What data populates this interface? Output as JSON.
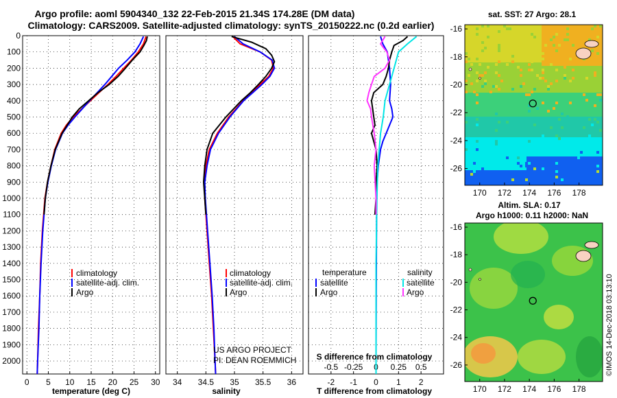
{
  "title": {
    "line1": "Argo profile: aoml 5904340_132 22-Feb-2015 21.34S 174.28E (DM data)",
    "line2": "Climatology: CARS2009. Satellite-adjusted climatology: synTS_20150222.nc (0.2d earlier)"
  },
  "depth_ticks": [
    "0",
    "100",
    "200",
    "300",
    "400",
    "500",
    "600",
    "700",
    "800",
    "900",
    "1000",
    "1100",
    "1200",
    "1300",
    "1400",
    "1500",
    "1600",
    "1700",
    "1800",
    "1900",
    "2000"
  ],
  "legend": {
    "climatology": "climatology",
    "satellite": "satellite-adj. clim.",
    "argo": "Argo",
    "diff_temp_title": "temperature",
    "diff_sal_title": "salinity",
    "diff_sat": "satellite",
    "diff_argo": "Argo"
  },
  "credit": {
    "line1": "US ARGO PROJECT",
    "line2": "PI: DEAN ROEMMICH"
  },
  "map1": {
    "title": "sat. SST: 27 Argo: 28.1"
  },
  "map2": {
    "title1": "Altim. SLA: 0.17",
    "title2": "Argo h1000: 0.11 h2000: NaN"
  },
  "map_xticks": [
    "170",
    "172",
    "174",
    "176",
    "178"
  ],
  "map_yticks": [
    "-16",
    "-18",
    "-20",
    "-22",
    "-24",
    "-26"
  ],
  "watermark": "©IMOS 14-Dec-2018 03:13:10",
  "colors": {
    "climatology": "#ff0000",
    "satellite": "#0000ff",
    "argo": "#000000",
    "sal_sat": "#00e5e5",
    "sal_argo": "#ff33ff"
  },
  "chart_data": [
    {
      "type": "line",
      "xlabel": "temperature (deg C)",
      "xlim": [
        -1,
        31
      ],
      "xticks": [
        "0",
        "5",
        "10",
        "15",
        "20",
        "25",
        "30"
      ],
      "ylim": [
        2080,
        0
      ],
      "series": [
        {
          "name": "climatology",
          "depth": [
            5,
            50,
            100,
            150,
            200,
            250,
            300,
            350,
            400,
            450,
            500,
            550,
            600,
            700,
            800,
            900,
            1000,
            1200,
            1400,
            1600,
            1800,
            2000,
            2080
          ],
          "values": [
            27.8,
            27.2,
            26.0,
            24.4,
            22.6,
            20.8,
            18.9,
            16.8,
            14.8,
            12.8,
            10.8,
            9.2,
            8.0,
            6.5,
            5.6,
            4.8,
            4.2,
            3.6,
            3.2,
            3.0,
            2.7,
            2.5,
            2.4
          ]
        },
        {
          "name": "satellite-adj. clim.",
          "depth": [
            5,
            50,
            100,
            150,
            200,
            250,
            300,
            350,
            400,
            450,
            500,
            550,
            600,
            700,
            800,
            900,
            1000,
            1200,
            1400,
            1600,
            1800,
            2000,
            2080
          ],
          "values": [
            27.2,
            26.4,
            25.2,
            23.4,
            21.4,
            19.8,
            18.2,
            16.4,
            14.6,
            12.9,
            11.2,
            9.6,
            8.3,
            6.7,
            5.7,
            4.9,
            4.3,
            3.7,
            3.3,
            3.0,
            2.8,
            2.5,
            2.4
          ]
        },
        {
          "name": "Argo",
          "depth": [
            5,
            30,
            60,
            100,
            150,
            200,
            250,
            300,
            350,
            400,
            450,
            500,
            550,
            600,
            700,
            800,
            900,
            1000,
            1100
          ],
          "values": [
            28.1,
            27.9,
            27.3,
            26.4,
            24.6,
            23.0,
            21.3,
            19.2,
            16.6,
            14.4,
            12.2,
            10.6,
            9.4,
            8.2,
            6.6,
            5.6,
            4.8,
            4.3,
            4.0
          ]
        }
      ]
    },
    {
      "type": "line",
      "xlabel": "salinity",
      "xlim": [
        33.8,
        36.2
      ],
      "xticks": [
        "34",
        "34.5",
        "35",
        "35.5",
        "36"
      ],
      "ylim": [
        2080,
        0
      ],
      "series": [
        {
          "name": "climatology",
          "depth": [
            5,
            50,
            100,
            150,
            200,
            250,
            300,
            350,
            400,
            500,
            600,
            700,
            800,
            900,
            1000,
            1200,
            1400,
            1600,
            1800,
            2000,
            2080
          ],
          "values": [
            34.97,
            35.1,
            35.45,
            35.65,
            35.68,
            35.6,
            35.45,
            35.3,
            35.15,
            34.9,
            34.7,
            34.56,
            34.5,
            34.47,
            34.48,
            34.52,
            34.56,
            34.6,
            34.63,
            34.66,
            34.67
          ]
        },
        {
          "name": "satellite-adj. clim.",
          "depth": [
            5,
            50,
            100,
            150,
            200,
            250,
            300,
            350,
            400,
            500,
            600,
            700,
            800,
            900,
            1000,
            1200,
            1400,
            1600,
            1800,
            2000,
            2080
          ],
          "values": [
            35.0,
            35.15,
            35.45,
            35.66,
            35.7,
            35.62,
            35.48,
            35.32,
            35.16,
            34.92,
            34.72,
            34.58,
            34.52,
            34.48,
            34.49,
            34.53,
            34.57,
            34.61,
            34.64,
            34.66,
            34.67
          ]
        },
        {
          "name": "Argo",
          "depth": [
            5,
            40,
            80,
            120,
            160,
            200,
            250,
            300,
            350,
            400,
            500,
            600,
            700,
            800,
            900,
            1000,
            1100
          ],
          "values": [
            34.95,
            35.3,
            35.55,
            35.65,
            35.7,
            35.65,
            35.55,
            35.42,
            35.28,
            35.12,
            34.85,
            34.62,
            34.52,
            34.48,
            34.46,
            34.48,
            34.5
          ]
        }
      ]
    },
    {
      "type": "line",
      "xlabel": "T difference from climatology",
      "xlabel2": "S difference from climatology",
      "xlim": [
        -3,
        3
      ],
      "xticks": [
        "-2",
        "-1",
        "0",
        "1",
        "2"
      ],
      "xticks2": [
        "-0.5",
        "-0.25",
        "0",
        "0.25",
        "0.5"
      ],
      "ylim": [
        2080,
        0
      ],
      "series": [
        {
          "name": "temperature satellite",
          "depth": [
            5,
            50,
            100,
            150,
            200,
            300,
            400,
            450,
            500,
            550,
            600,
            650,
            700,
            800,
            900,
            1000,
            1200,
            1600,
            2000,
            2080
          ],
          "values": [
            0.2,
            0.3,
            0.5,
            0.55,
            0.6,
            0.65,
            0.6,
            0.7,
            0.75,
            0.6,
            0.45,
            0.3,
            0.2,
            0.1,
            0.05,
            0.03,
            0.02,
            0.01,
            0.0,
            0.0
          ]
        },
        {
          "name": "temperature Argo",
          "depth": [
            5,
            30,
            60,
            100,
            150,
            200,
            250,
            300,
            350,
            400,
            450,
            500,
            550,
            600,
            650,
            700,
            800,
            900,
            1000,
            1100
          ],
          "values": [
            1.4,
            1.2,
            0.8,
            0.7,
            0.6,
            0.55,
            0.45,
            0.3,
            -0.1,
            -0.2,
            -0.15,
            -0.1,
            -0.05,
            -0.2,
            -0.1,
            0.0,
            0.05,
            0.0,
            0.0,
            -0.05
          ]
        },
        {
          "name": "salinity satellite",
          "depth": [
            5,
            50,
            100,
            200,
            300,
            400,
            500,
            600,
            800,
            1000,
            1400,
            2000,
            2080
          ],
          "values": [
            0.45,
            0.35,
            0.25,
            0.2,
            0.15,
            0.1,
            0.08,
            0.05,
            0.02,
            0.01,
            0.0,
            0.0,
            0.0
          ]
        },
        {
          "name": "salinity Argo",
          "depth": [
            5,
            50,
            100,
            150,
            200,
            250,
            300,
            350,
            400,
            450,
            500,
            600,
            700,
            800,
            900,
            1000,
            1100
          ],
          "values": [
            0.1,
            0.05,
            0.12,
            0.15,
            0.1,
            -0.02,
            -0.05,
            -0.08,
            -0.1,
            -0.06,
            -0.05,
            -0.02,
            0.0,
            -0.02,
            -0.01,
            0.0,
            0.0
          ]
        }
      ]
    },
    {
      "type": "heatmap",
      "title": "sat. SST: 27 Argo: 28.1",
      "xlim": [
        168.8,
        179.9
      ],
      "ylim": [
        -27.2,
        -15.7
      ],
      "argo_position": [
        174.28,
        -21.34
      ]
    },
    {
      "type": "heatmap",
      "title": "Altim. SLA: 0.17",
      "xlim": [
        168.8,
        179.9
      ],
      "ylim": [
        -27.2,
        -15.7
      ],
      "argo_position": [
        174.28,
        -21.34
      ]
    }
  ]
}
